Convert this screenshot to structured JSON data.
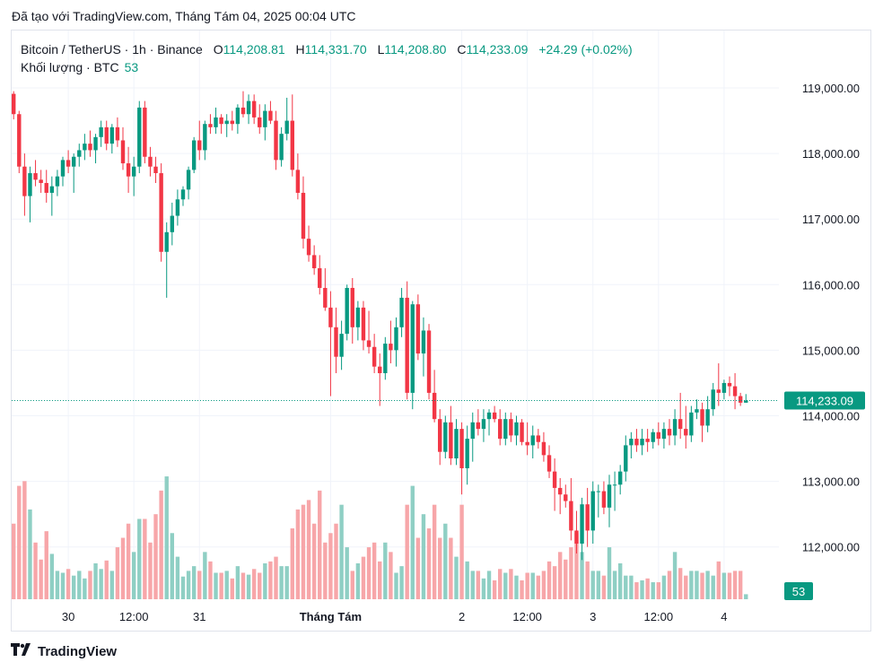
{
  "caption": "Đã tạo với TradingView.com, Tháng Tám 04, 2025 00:04 UTC",
  "legend": {
    "symbol": "Bitcoin / TetherUS · 1h · Binance",
    "o_label": "O",
    "o_value": "114,208.81",
    "h_label": "H",
    "h_value": "114,331.70",
    "l_label": "L",
    "l_value": "114,208.80",
    "c_label": "C",
    "c_value": "114,233.09",
    "change": "+24.29 (+0.02%)",
    "volume_label": "Khối lượng · BTC",
    "volume_value": "53"
  },
  "price_badge": "114,233.09",
  "volume_badge": "53",
  "brand": "TradingView",
  "colors": {
    "up": "#089981",
    "down": "#f23645",
    "up_vol": "#8fcfc4",
    "down_vol": "#f7a6a9"
  },
  "chart_data": {
    "type": "candlestick",
    "y_ticks": [
      "119,000.00",
      "118,000.00",
      "117,000.00",
      "116,000.00",
      "115,000.00",
      "114,000.00",
      "113,000.00",
      "112,000.00"
    ],
    "y_tick_values": [
      119000,
      118000,
      117000,
      116000,
      115000,
      114000,
      113000,
      112000
    ],
    "ylim": [
      111250,
      119500
    ],
    "x_ticks": [
      {
        "label": "30",
        "bar": 10,
        "bold": false
      },
      {
        "label": "12:00",
        "bar": 22,
        "bold": false
      },
      {
        "label": "31",
        "bar": 34,
        "bold": false
      },
      {
        "label": "Tháng Tám",
        "bar": 58,
        "bold": true
      },
      {
        "label": "2",
        "bar": 82,
        "bold": false
      },
      {
        "label": "12:00",
        "bar": 94,
        "bold": false
      },
      {
        "label": "3",
        "bar": 106,
        "bold": false
      },
      {
        "label": "12:00",
        "bar": 118,
        "bold": false
      },
      {
        "label": "4",
        "bar": 130,
        "bold": false
      }
    ],
    "last_price": 114233.09,
    "volume_max": 1500,
    "candles": [
      [
        118910,
        118950,
        118520,
        118600,
        800
      ],
      [
        118600,
        118650,
        117700,
        117800,
        1200
      ],
      [
        117800,
        118000,
        117050,
        117350,
        1250
      ],
      [
        117350,
        117800,
        116950,
        117700,
        950
      ],
      [
        117700,
        117900,
        117500,
        117600,
        600
      ],
      [
        117600,
        117750,
        117400,
        117550,
        420
      ],
      [
        117550,
        117750,
        117250,
        117400,
        720
      ],
      [
        117400,
        117650,
        117050,
        117500,
        480
      ],
      [
        117500,
        117750,
        117350,
        117650,
        300
      ],
      [
        117650,
        117950,
        117500,
        117900,
        280
      ],
      [
        117900,
        118050,
        117700,
        117800,
        320
      ],
      [
        117800,
        118000,
        117400,
        117950,
        250
      ],
      [
        117950,
        118150,
        117800,
        118050,
        300
      ],
      [
        118050,
        118300,
        117900,
        118150,
        220
      ],
      [
        118150,
        118350,
        117950,
        118050,
        300
      ],
      [
        118050,
        118300,
        117850,
        118250,
        380
      ],
      [
        118250,
        118500,
        118100,
        118400,
        320
      ],
      [
        118400,
        118500,
        118050,
        118150,
        410
      ],
      [
        118150,
        118450,
        118000,
        118400,
        300
      ],
      [
        118400,
        118550,
        118100,
        118200,
        550
      ],
      [
        118200,
        118400,
        117750,
        117850,
        650
      ],
      [
        117850,
        118100,
        117400,
        117650,
        800
      ],
      [
        117650,
        117950,
        117350,
        117800,
        500
      ],
      [
        117800,
        118800,
        117700,
        118700,
        850
      ],
      [
        118700,
        118800,
        117850,
        117950,
        850
      ],
      [
        117950,
        118100,
        117650,
        117800,
        600
      ],
      [
        117800,
        117950,
        117550,
        117700,
        900
      ],
      [
        117700,
        117850,
        116350,
        116500,
        1150
      ],
      [
        116500,
        116950,
        115800,
        116800,
        1300
      ],
      [
        116800,
        117250,
        116600,
        117050,
        700
      ],
      [
        117050,
        117450,
        116900,
        117300,
        450
      ],
      [
        117300,
        117500,
        117200,
        117450,
        240
      ],
      [
        117450,
        117800,
        117300,
        117750,
        300
      ],
      [
        117750,
        118250,
        117700,
        118200,
        350
      ],
      [
        118200,
        118500,
        117900,
        118050,
        300
      ],
      [
        118050,
        118500,
        117900,
        118450,
        500
      ],
      [
        118450,
        118600,
        118300,
        118400,
        400
      ],
      [
        118400,
        118700,
        118300,
        118550,
        280
      ],
      [
        118550,
        118600,
        118300,
        118450,
        280
      ],
      [
        118450,
        118600,
        118250,
        118500,
        300
      ],
      [
        118500,
        118650,
        118350,
        118450,
        220
      ],
      [
        118450,
        118750,
        118300,
        118700,
        350
      ],
      [
        118700,
        118950,
        118550,
        118600,
        280
      ],
      [
        118600,
        118900,
        118450,
        118800,
        260
      ],
      [
        118800,
        118900,
        118450,
        118550,
        320
      ],
      [
        118550,
        118750,
        118300,
        118400,
        280
      ],
      [
        118400,
        118750,
        118200,
        118650,
        380
      ],
      [
        118650,
        118800,
        118450,
        118500,
        400
      ],
      [
        118500,
        118650,
        117750,
        117900,
        450
      ],
      [
        117900,
        118400,
        117800,
        118300,
        350
      ],
      [
        118300,
        118850,
        118200,
        118500,
        350
      ],
      [
        118500,
        118900,
        117650,
        117750,
        750
      ],
      [
        117750,
        118000,
        117300,
        117400,
        950
      ],
      [
        117400,
        117650,
        116550,
        116700,
        1000
      ],
      [
        116700,
        116900,
        116350,
        116450,
        1050
      ],
      [
        116450,
        116600,
        116150,
        116250,
        800
      ],
      [
        116250,
        116450,
        115850,
        115950,
        1150
      ],
      [
        115950,
        116250,
        115600,
        115650,
        600
      ],
      [
        115650,
        115900,
        114300,
        115350,
        700
      ],
      [
        115350,
        115650,
        114650,
        114900,
        800
      ],
      [
        114900,
        115450,
        114700,
        115250,
        1000
      ],
      [
        115250,
        116000,
        115150,
        115950,
        550
      ],
      [
        115950,
        116100,
        115100,
        115350,
        300
      ],
      [
        115350,
        115750,
        115150,
        115650,
        380
      ],
      [
        115650,
        115750,
        115000,
        115150,
        450
      ],
      [
        115150,
        115600,
        114950,
        115050,
        550
      ],
      [
        115050,
        115250,
        114650,
        114750,
        600
      ],
      [
        114750,
        114950,
        114150,
        114650,
        400
      ],
      [
        114650,
        115200,
        114550,
        115100,
        600
      ],
      [
        115100,
        115450,
        114800,
        115000,
        500
      ],
      [
        115000,
        115500,
        114750,
        115350,
        280
      ],
      [
        115350,
        115950,
        115200,
        115800,
        350
      ],
      [
        115800,
        116050,
        114250,
        114350,
        1000
      ],
      [
        114350,
        115750,
        114100,
        115700,
        1200
      ],
      [
        115700,
        115850,
        114850,
        114950,
        650
      ],
      [
        114950,
        115500,
        114600,
        115300,
        900
      ],
      [
        115300,
        115400,
        114250,
        114350,
        750
      ],
      [
        114350,
        114700,
        113900,
        113950,
        1000
      ],
      [
        113950,
        114100,
        113250,
        113450,
        650
      ],
      [
        113450,
        114000,
        113350,
        113900,
        800
      ],
      [
        113900,
        114150,
        113250,
        113350,
        650
      ],
      [
        113350,
        113950,
        113250,
        113800,
        450
      ],
      [
        113800,
        113900,
        112800,
        113200,
        1000
      ],
      [
        113200,
        113850,
        112950,
        113650,
        400
      ],
      [
        113650,
        114050,
        113300,
        113900,
        300
      ],
      [
        113900,
        114100,
        113700,
        113800,
        300
      ],
      [
        113800,
        114100,
        113600,
        113950,
        220
      ],
      [
        113950,
        114100,
        113700,
        114050,
        300
      ],
      [
        114050,
        114150,
        113900,
        113950,
        200
      ],
      [
        113950,
        114100,
        113550,
        113650,
        320
      ],
      [
        113650,
        114050,
        113550,
        113950,
        280
      ],
      [
        113950,
        114050,
        113600,
        113700,
        320
      ],
      [
        113700,
        114000,
        113550,
        113900,
        250
      ],
      [
        113900,
        113950,
        113550,
        113600,
        200
      ],
      [
        113600,
        113900,
        113400,
        113550,
        280
      ],
      [
        113550,
        113850,
        113350,
        113700,
        280
      ],
      [
        113700,
        113800,
        113500,
        113600,
        250
      ],
      [
        113600,
        113750,
        113300,
        113400,
        300
      ],
      [
        113400,
        113550,
        113050,
        113150,
        400
      ],
      [
        113150,
        113350,
        112550,
        112900,
        350
      ],
      [
        112900,
        113050,
        112500,
        112800,
        500
      ],
      [
        112800,
        112950,
        112600,
        112700,
        420
      ],
      [
        112700,
        113050,
        112100,
        112250,
        550
      ],
      [
        112250,
        112550,
        111900,
        112050,
        700
      ],
      [
        112050,
        112750,
        111800,
        112650,
        500
      ],
      [
        112650,
        112900,
        112000,
        112250,
        400
      ],
      [
        112250,
        113000,
        112050,
        112850,
        300
      ],
      [
        112850,
        112950,
        112450,
        112850,
        300
      ],
      [
        112850,
        113000,
        112500,
        112600,
        250
      ],
      [
        112600,
        113100,
        112300,
        112950,
        550
      ],
      [
        112950,
        113150,
        112550,
        112950,
        300
      ],
      [
        112950,
        113250,
        112800,
        113150,
        380
      ],
      [
        113150,
        113700,
        113000,
        113550,
        250
      ],
      [
        113550,
        113750,
        113350,
        113650,
        250
      ],
      [
        113650,
        113800,
        113450,
        113550,
        180
      ],
      [
        113550,
        113800,
        113400,
        113650,
        200
      ],
      [
        113650,
        113800,
        113450,
        113600,
        220
      ],
      [
        113600,
        113800,
        113500,
        113750,
        180
      ],
      [
        113750,
        113900,
        113550,
        113650,
        180
      ],
      [
        113650,
        113900,
        113500,
        113800,
        250
      ],
      [
        113800,
        113950,
        113550,
        113700,
        300
      ],
      [
        113700,
        114100,
        113550,
        113950,
        500
      ],
      [
        113950,
        114350,
        113650,
        113800,
        330
      ],
      [
        113800,
        114150,
        113500,
        113700,
        250
      ],
      [
        113700,
        114150,
        113600,
        114050,
        300
      ],
      [
        114050,
        114250,
        113950,
        114100,
        300
      ],
      [
        114100,
        114200,
        113600,
        113850,
        280
      ],
      [
        113850,
        114300,
        113750,
        114100,
        300
      ],
      [
        114100,
        114500,
        114000,
        114400,
        250
      ],
      [
        114400,
        114800,
        114150,
        114350,
        400
      ],
      [
        114350,
        114550,
        114250,
        114500,
        280
      ],
      [
        114500,
        114600,
        114300,
        114450,
        280
      ],
      [
        114450,
        114650,
        114100,
        114300,
        300
      ],
      [
        114300,
        114350,
        114150,
        114200,
        300
      ],
      [
        114200,
        114331,
        114200,
        114233,
        53
      ]
    ]
  }
}
